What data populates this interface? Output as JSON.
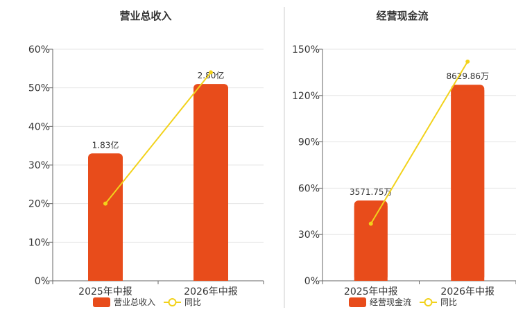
{
  "colors": {
    "bar": "#e84c1b",
    "line": "#f2d21b",
    "axis": "#666666",
    "grid": "#e6e6e6",
    "divider": "#cccccc",
    "text": "#333333"
  },
  "chart_data": [
    {
      "type": "bar",
      "title": "营业总收入",
      "categories": [
        "2025年中报",
        "2026年中报"
      ],
      "series": [
        {
          "name": "营业总收入",
          "type": "bar",
          "axis": "left",
          "values": [
            33.0,
            51.0
          ],
          "data_labels": [
            "1.83亿",
            "2.80亿"
          ]
        },
        {
          "name": "同比",
          "type": "line",
          "axis": "left",
          "values": [
            20.0,
            54.0
          ]
        }
      ],
      "ylim": [
        0,
        60
      ],
      "yticks": [
        "0%",
        "10%",
        "20%",
        "30%",
        "40%",
        "50%",
        "60%"
      ],
      "grid": true,
      "legend": "bottom"
    },
    {
      "type": "bar",
      "title": "经营现金流",
      "categories": [
        "2025年中报",
        "2026年中报"
      ],
      "series": [
        {
          "name": "经营现金流",
          "type": "bar",
          "axis": "left",
          "values": [
            52.0,
            127.0
          ],
          "data_labels": [
            "3571.75万",
            "8629.86万"
          ]
        },
        {
          "name": "同比",
          "type": "line",
          "axis": "left",
          "values": [
            37.0,
            142.0
          ]
        }
      ],
      "ylim": [
        0,
        150
      ],
      "yticks": [
        "0%",
        "30%",
        "60%",
        "90%",
        "120%",
        "150%"
      ],
      "grid": true,
      "legend": "bottom"
    }
  ]
}
